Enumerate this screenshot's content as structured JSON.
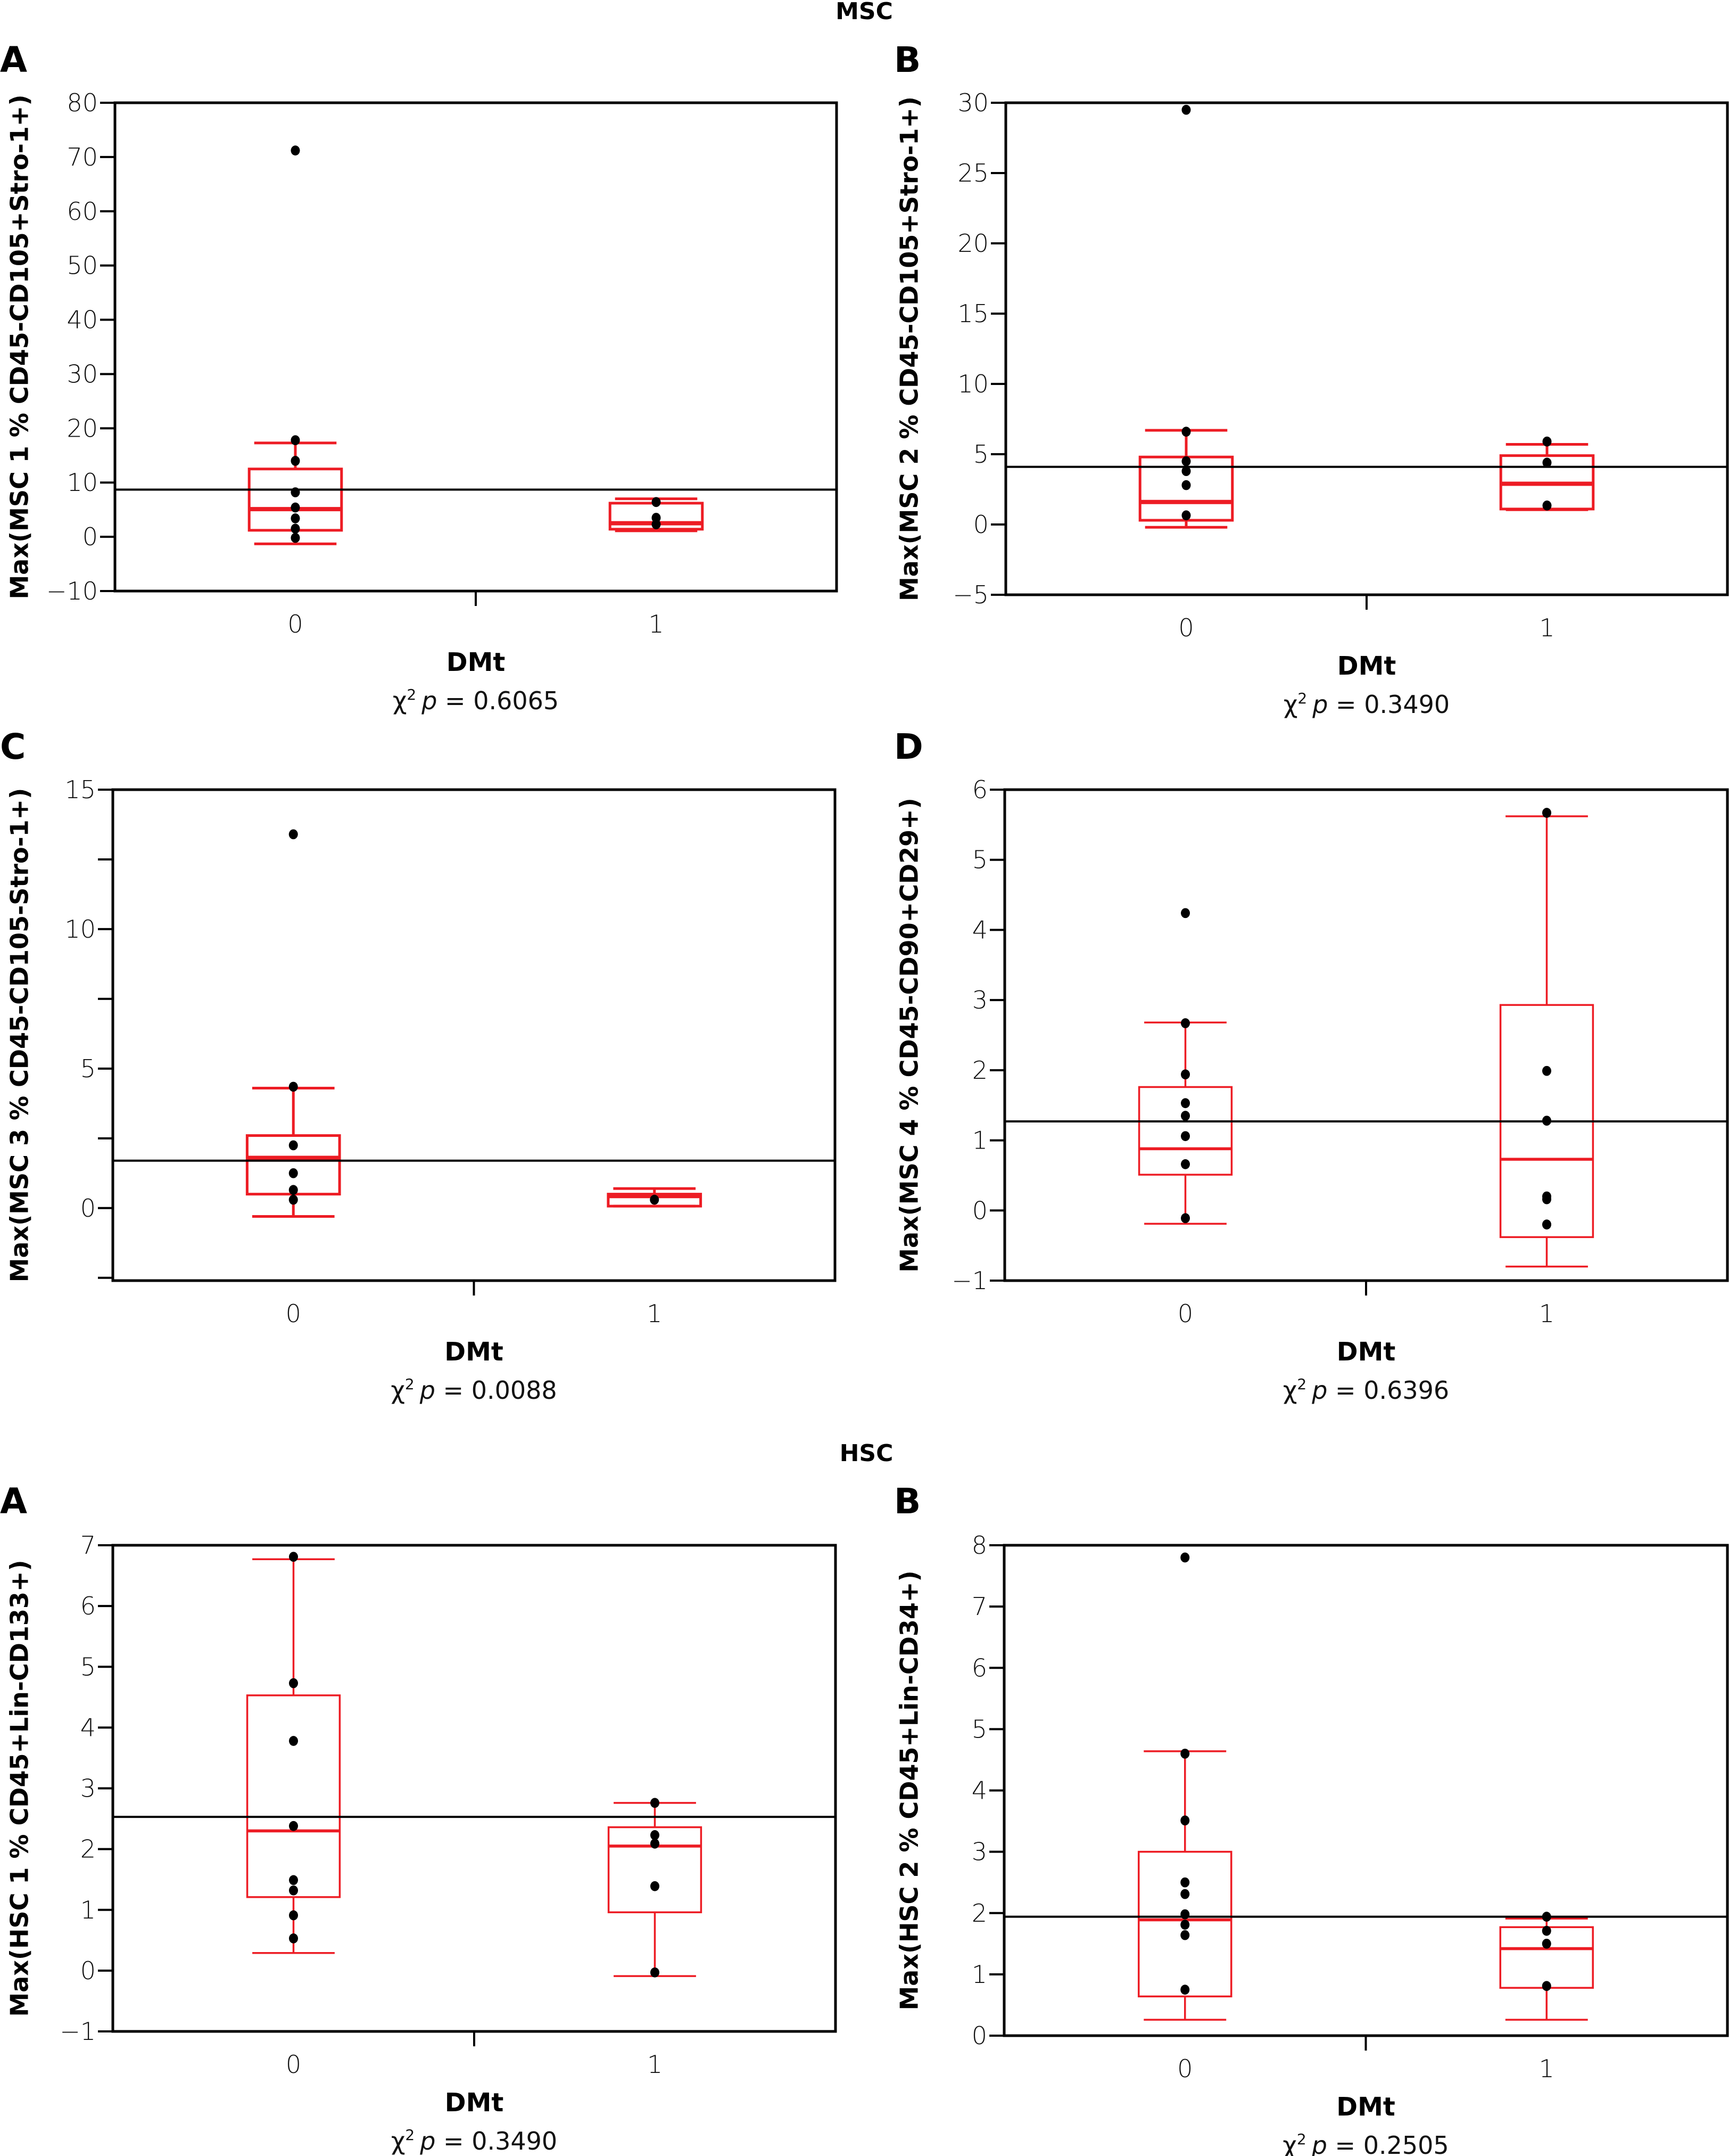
{
  "figure": {
    "sections": [
      {
        "title": "MSC"
      },
      {
        "title": "HSC"
      }
    ]
  },
  "colors": {
    "box": "#ED1C24",
    "points": "#000000",
    "mean_line": "#000000",
    "frame": "#000000"
  },
  "chart_data": [
    {
      "type": "box",
      "section": "MSC",
      "panel": "A",
      "title": "",
      "xlabel": "DMt",
      "ylabel": "Max(MSC 1 % CD45-CD105+Stro-1+)",
      "categories": [
        "0",
        "1"
      ],
      "ylim": [
        -10,
        80
      ],
      "yticks": [
        -10,
        0,
        10,
        20,
        30,
        40,
        50,
        60,
        70,
        80
      ],
      "ytick_labels": [
        "−10",
        "0",
        "10",
        "20",
        "30",
        "40",
        "50",
        "60",
        "70",
        "80"
      ],
      "grand_mean": 8.7,
      "stat": {
        "prefix": "χ",
        "sup": "2",
        "p_label": "p",
        "text": " = 0.6065"
      },
      "groups": [
        {
          "category": "0",
          "whisker_low": -1.3,
          "q1": 1.2,
          "median": 5.1,
          "q3": 12.5,
          "whisker_high": 17.3,
          "points": [
            71.2,
            17.8,
            14.0,
            8.2,
            5.4,
            3.4,
            1.5,
            -0.2
          ]
        },
        {
          "category": "1",
          "whisker_low": 1.1,
          "q1": 1.4,
          "median": 2.5,
          "q3": 6.2,
          "whisker_high": 7.0,
          "points": [
            6.4,
            3.5,
            2.3
          ]
        }
      ]
    },
    {
      "type": "box",
      "section": "MSC",
      "panel": "B",
      "title": "",
      "xlabel": "DMt",
      "ylabel": "Max(MSC 2 % CD45-CD105+Stro-1+)",
      "categories": [
        "0",
        "1"
      ],
      "ylim": [
        -5,
        30
      ],
      "yticks": [
        -5,
        0,
        5,
        10,
        15,
        20,
        25,
        30
      ],
      "ytick_labels": [
        "−5",
        "0",
        "5",
        "10",
        "15",
        "20",
        "25",
        "30"
      ],
      "grand_mean": 4.1,
      "stat": {
        "prefix": "χ",
        "sup": "2",
        "p_label": "p",
        "text": " = 0.3490"
      },
      "groups": [
        {
          "category": "0",
          "whisker_low": -0.2,
          "q1": 0.3,
          "median": 1.6,
          "q3": 4.8,
          "whisker_high": 6.7,
          "points": [
            29.5,
            6.6,
            4.5,
            3.8,
            2.8,
            0.65
          ]
        },
        {
          "category": "1",
          "whisker_low": 1.05,
          "q1": 1.1,
          "median": 2.9,
          "q3": 4.9,
          "whisker_high": 5.7,
          "points": [
            5.9,
            4.4,
            1.35
          ]
        }
      ]
    },
    {
      "type": "box",
      "section": "MSC",
      "panel": "C",
      "title": "",
      "xlabel": "DMt",
      "ylabel": "Max(MSC 3 % CD45-CD105-Stro-1+)",
      "categories": [
        "0",
        "1"
      ],
      "ylim": [
        -2.6,
        15
      ],
      "yticks": [
        -2.5,
        0,
        2.5,
        5,
        7.5,
        10,
        12.5,
        15
      ],
      "ytick_labels": [
        "",
        "0",
        "",
        "5",
        "",
        "10",
        "",
        "15"
      ],
      "grand_mean": 1.7,
      "stat": {
        "prefix": "χ",
        "sup": "2",
        "p_label": "p",
        "text": " = 0.0088"
      },
      "groups": [
        {
          "category": "0",
          "whisker_low": -0.3,
          "q1": 0.5,
          "median": 1.8,
          "q3": 2.6,
          "whisker_high": 4.3,
          "points": [
            13.4,
            4.35,
            2.25,
            1.25,
            0.65,
            0.3
          ]
        },
        {
          "category": "1",
          "whisker_low": 0.07,
          "q1": 0.07,
          "median": 0.43,
          "q3": 0.5,
          "whisker_high": 0.7,
          "points": [
            0.3
          ]
        }
      ]
    },
    {
      "type": "box",
      "section": "MSC",
      "panel": "D",
      "title": "",
      "xlabel": "DMt",
      "ylabel": "Max(MSC 4 % CD45-CD90+CD29+)",
      "categories": [
        "0",
        "1"
      ],
      "ylim": [
        -1,
        6
      ],
      "yticks": [
        -1,
        0,
        1,
        2,
        3,
        4,
        5,
        6
      ],
      "ytick_labels": [
        "−1",
        "0",
        "1",
        "2",
        "3",
        "4",
        "5",
        "6"
      ],
      "grand_mean": 1.27,
      "stat": {
        "prefix": "χ",
        "sup": "2",
        "p_label": "p",
        "text": " = 0.6396"
      },
      "groups": [
        {
          "category": "0",
          "whisker_low": -0.19,
          "q1": 0.51,
          "median": 0.88,
          "q3": 1.76,
          "whisker_high": 2.68,
          "points": [
            4.24,
            2.67,
            1.94,
            1.53,
            1.35,
            1.06,
            0.66,
            -0.11
          ]
        },
        {
          "category": "1",
          "whisker_low": -0.8,
          "q1": -0.38,
          "median": 0.73,
          "q3": 2.93,
          "whisker_high": 5.62,
          "points": [
            5.67,
            1.99,
            1.28,
            0.2,
            0.16,
            -0.2
          ]
        }
      ]
    },
    {
      "type": "box",
      "section": "HSC",
      "panel": "A",
      "title": "",
      "xlabel": "DMt",
      "ylabel": "Max(HSC 1 % CD45+Lin-CD133+)",
      "categories": [
        "0",
        "1"
      ],
      "ylim": [
        -1,
        7
      ],
      "yticks": [
        -1,
        0,
        1,
        2,
        3,
        4,
        5,
        6,
        7
      ],
      "ytick_labels": [
        "−1",
        "0",
        "1",
        "2",
        "3",
        "4",
        "5",
        "6",
        "7"
      ],
      "grand_mean": 2.53,
      "stat": {
        "prefix": "χ",
        "sup": "2",
        "p_label": "p",
        "text": " = 0.3490"
      },
      "groups": [
        {
          "category": "0",
          "whisker_low": 0.29,
          "q1": 1.21,
          "median": 2.3,
          "q3": 4.53,
          "whisker_high": 6.77,
          "points": [
            6.81,
            4.73,
            3.78,
            2.38,
            1.49,
            1.32,
            0.91,
            0.53
          ]
        },
        {
          "category": "1",
          "whisker_low": -0.09,
          "q1": 0.96,
          "median": 2.05,
          "q3": 2.36,
          "whisker_high": 2.76,
          "points": [
            2.76,
            2.23,
            2.09,
            1.39,
            -0.03
          ]
        }
      ]
    },
    {
      "type": "box",
      "section": "HSC",
      "panel": "B",
      "title": "",
      "xlabel": "DMt",
      "ylabel": "Max(HSC 2 % CD45+Lin-CD34+)",
      "categories": [
        "0",
        "1"
      ],
      "ylim": [
        0,
        8
      ],
      "yticks": [
        0,
        1,
        2,
        3,
        4,
        5,
        6,
        7,
        8
      ],
      "ytick_labels": [
        "0",
        "1",
        "2",
        "3",
        "4",
        "5",
        "6",
        "7",
        "8"
      ],
      "grand_mean": 1.94,
      "stat": {
        "prefix": "χ",
        "sup": "2",
        "p_label": "p",
        "text": " = 0.2505"
      },
      "groups": [
        {
          "category": "0",
          "whisker_low": 0.26,
          "q1": 0.64,
          "median": 1.89,
          "q3": 3.0,
          "whisker_high": 4.64,
          "points": [
            7.8,
            4.6,
            3.51,
            2.5,
            2.31,
            1.98,
            1.81,
            1.64,
            0.75
          ]
        },
        {
          "category": "1",
          "whisker_low": 0.26,
          "q1": 0.78,
          "median": 1.42,
          "q3": 1.77,
          "whisker_high": 1.91,
          "points": [
            1.94,
            1.71,
            1.5,
            0.81
          ]
        }
      ]
    }
  ]
}
